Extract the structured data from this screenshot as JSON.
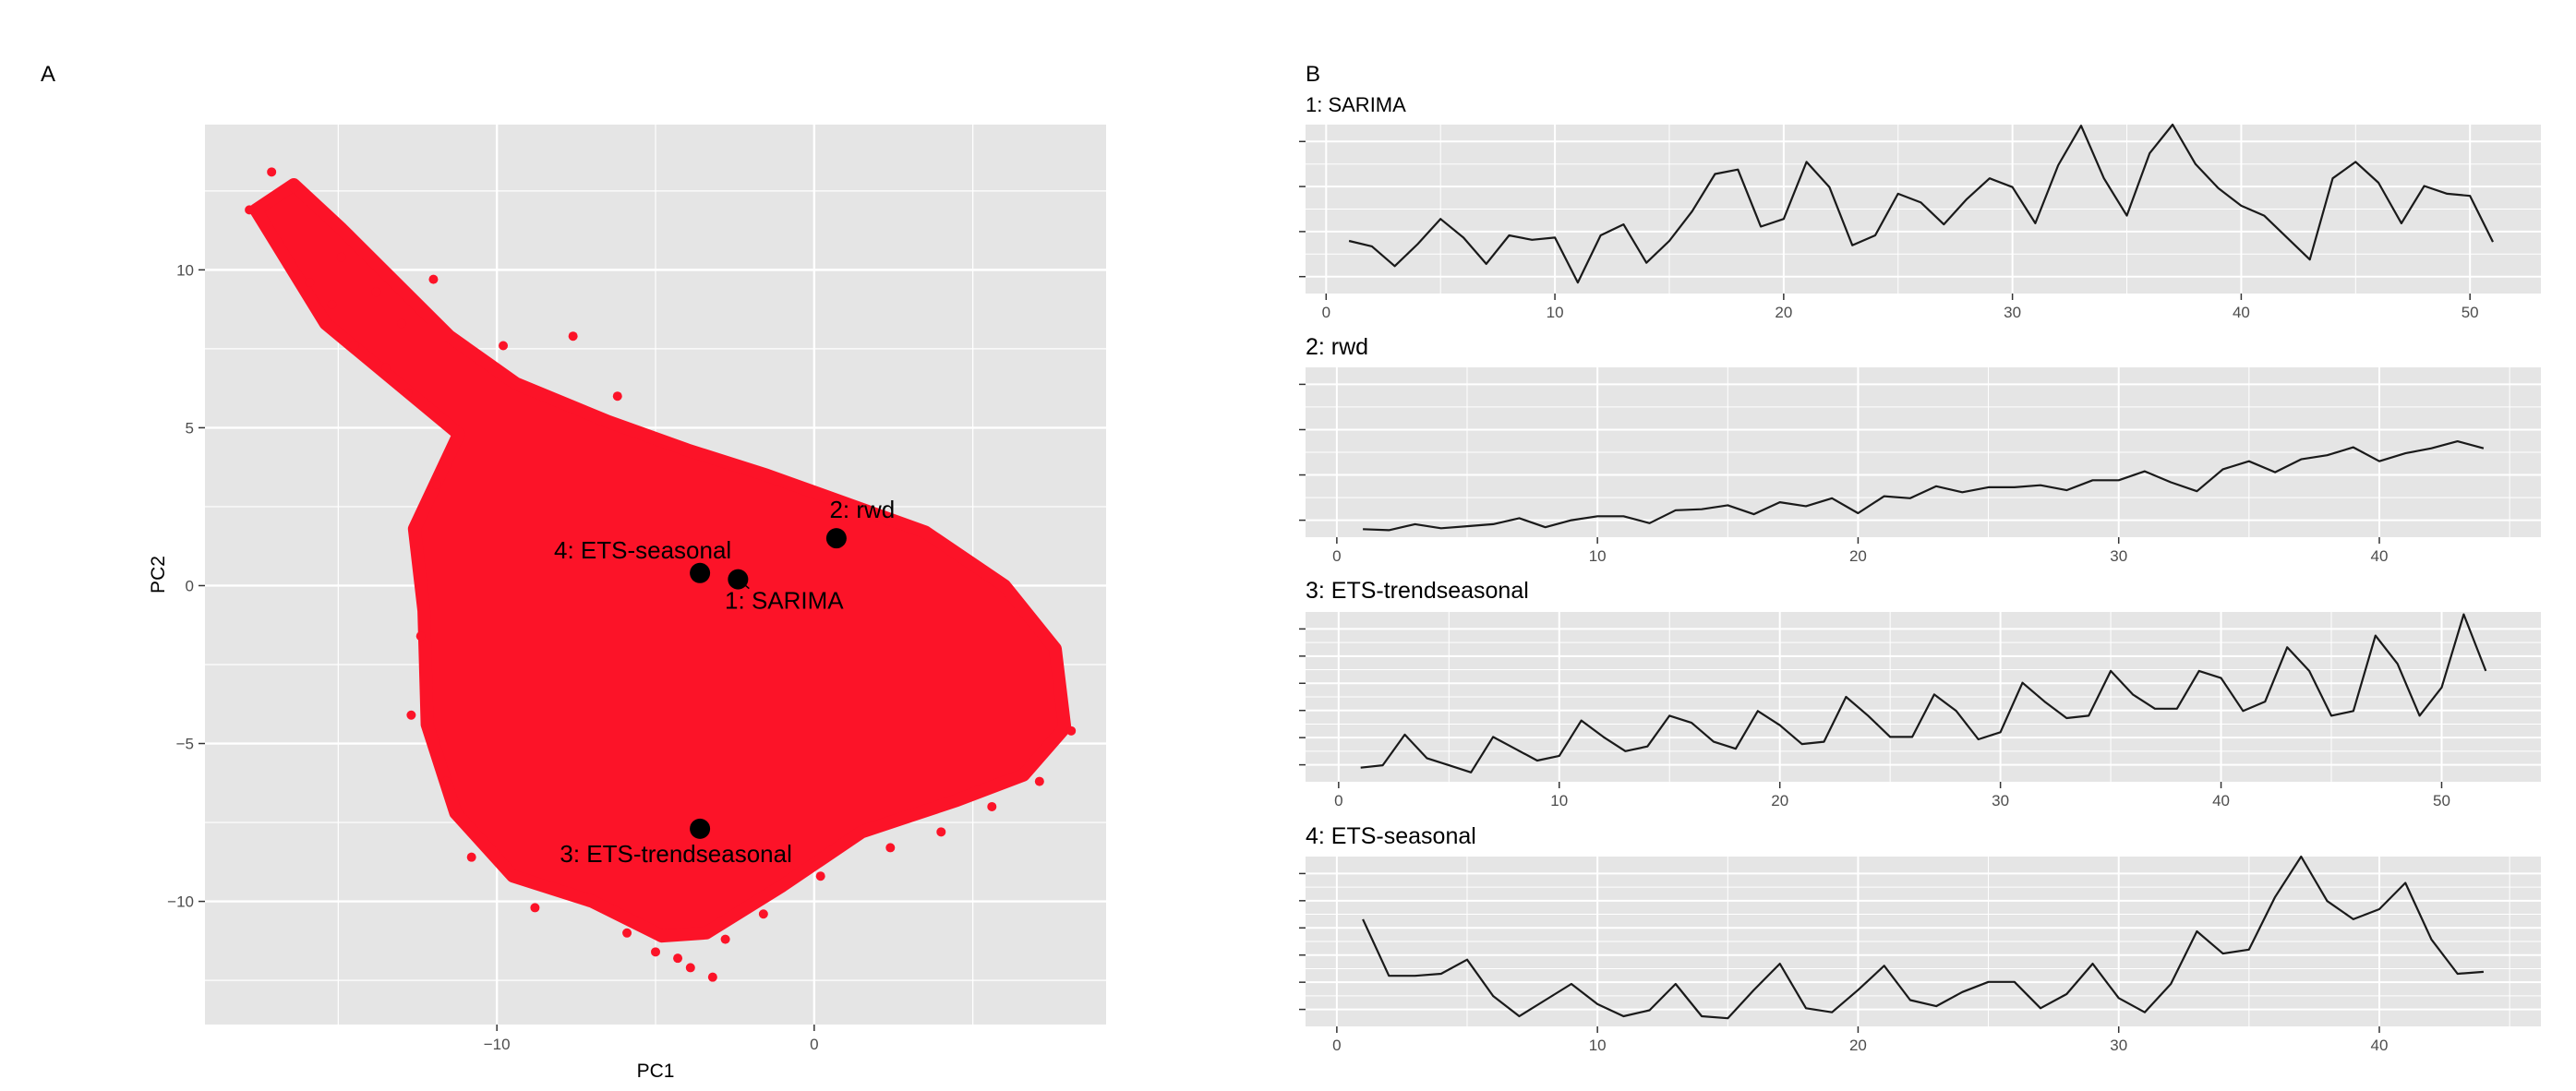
{
  "panels": {
    "a_letter": "A",
    "b_letter": "B"
  },
  "colors": {
    "panel_bg": "#e5e5e5",
    "grid": "#ffffff",
    "cloud": "#fc1328",
    "line": "#1a1a1a",
    "highlight": "#000000"
  },
  "chart_data": [
    {
      "type": "scatter",
      "panel": "A",
      "title": "",
      "xlabel": "PC1",
      "ylabel": "PC2",
      "xlim": [
        -19.2,
        9.2
      ],
      "ylim": [
        -13.9,
        14.6
      ],
      "x_ticks": [
        -10,
        0
      ],
      "y_ticks": [
        10,
        5,
        0,
        -5,
        -10
      ],
      "grid": true,
      "point_cloud_outline": [
        [
          -17.6,
          11.9
        ],
        [
          -16.4,
          12.7
        ],
        [
          -14.9,
          11.3
        ],
        [
          -11.5,
          7.9
        ],
        [
          -9.4,
          6.4
        ],
        [
          -6.5,
          5.2
        ],
        [
          -4.0,
          4.3
        ],
        [
          -1.5,
          3.5
        ],
        [
          1.0,
          2.6
        ],
        [
          3.5,
          1.7
        ],
        [
          6.0,
          0.0
        ],
        [
          7.6,
          -2.0
        ],
        [
          7.9,
          -4.5
        ],
        [
          6.6,
          -6.0
        ],
        [
          4.5,
          -6.8
        ],
        [
          1.5,
          -7.8
        ],
        [
          -1.0,
          -9.5
        ],
        [
          -3.4,
          -11.0
        ],
        [
          -4.8,
          -11.1
        ],
        [
          -7.0,
          -10.0
        ],
        [
          -9.5,
          -9.2
        ],
        [
          -11.3,
          -7.2
        ],
        [
          -12.2,
          -4.4
        ],
        [
          -12.3,
          -0.8
        ],
        [
          -12.6,
          1.8
        ],
        [
          -11.2,
          4.8
        ],
        [
          -15.4,
          8.3
        ]
      ],
      "outliers": [
        [
          -17.8,
          11.9
        ],
        [
          -17.1,
          13.1
        ],
        [
          -16.4,
          12.6
        ],
        [
          -15.9,
          9.6
        ],
        [
          -15.2,
          8.9
        ],
        [
          -14.9,
          10.4
        ],
        [
          -14.5,
          7.6
        ],
        [
          -13.8,
          9.3
        ],
        [
          -13.5,
          6.9
        ],
        [
          -13.0,
          8.3
        ],
        [
          -12.8,
          6.1
        ],
        [
          -12.0,
          9.7
        ],
        [
          -12.7,
          -4.1
        ],
        [
          -12.4,
          -1.6
        ],
        [
          -11.9,
          3.2
        ],
        [
          -11.6,
          -6.2
        ],
        [
          -10.8,
          -8.6
        ],
        [
          -9.8,
          7.6
        ],
        [
          -8.8,
          -10.2
        ],
        [
          -7.6,
          7.9
        ],
        [
          -6.2,
          6.0
        ],
        [
          -5.9,
          -11.0
        ],
        [
          -5.0,
          -11.6
        ],
        [
          -4.3,
          -11.8
        ],
        [
          -3.9,
          -12.1
        ],
        [
          -3.2,
          -12.4
        ],
        [
          -2.8,
          -11.2
        ],
        [
          -1.6,
          -10.4
        ],
        [
          0.2,
          -9.2
        ],
        [
          2.4,
          -8.3
        ],
        [
          4.0,
          -7.8
        ],
        [
          5.6,
          -7.0
        ],
        [
          7.1,
          -6.2
        ],
        [
          8.1,
          -4.6
        ]
      ],
      "highlighted": [
        {
          "label": "1: SARIMA",
          "x": -2.4,
          "y": 0.2
        },
        {
          "label": "2: rwd",
          "x": 0.7,
          "y": 1.5
        },
        {
          "label": "3: ETS-trendseasonal",
          "x": -3.6,
          "y": -7.7
        },
        {
          "label": "4: ETS-seasonal",
          "x": -3.6,
          "y": 0.4
        }
      ]
    },
    {
      "type": "line",
      "panel": "B",
      "title": "1: SARIMA",
      "xlabel": "",
      "ylabel": "",
      "xlim": [
        -0.9,
        53.1
      ],
      "ylim": [
        -1.0,
        14.4
      ],
      "x_ticks": [
        0,
        10,
        20,
        30,
        40,
        50
      ],
      "n_y_ticks": 4,
      "grid": true,
      "x": [
        1,
        2,
        3,
        4,
        5,
        6,
        7,
        8,
        9,
        10,
        11,
        12,
        13,
        14,
        15,
        16,
        17,
        18,
        19,
        20,
        21,
        22,
        23,
        24,
        25,
        26,
        27,
        28,
        29,
        30,
        31,
        32,
        33,
        34,
        35,
        36,
        37,
        38,
        39,
        40,
        41,
        42,
        43,
        44,
        45,
        46,
        47,
        48,
        49,
        50,
        51
      ],
      "y": [
        3.8,
        3.3,
        1.5,
        3.5,
        5.8,
        4.1,
        1.7,
        4.3,
        3.9,
        4.1,
        0.0,
        4.3,
        5.3,
        1.8,
        3.8,
        6.5,
        9.9,
        10.3,
        5.1,
        5.8,
        11.0,
        8.7,
        3.4,
        4.3,
        8.1,
        7.3,
        5.3,
        7.6,
        9.5,
        8.7,
        5.4,
        10.7,
        14.3,
        9.5,
        6.1,
        11.8,
        14.4,
        10.8,
        8.6,
        7.0,
        6.1,
        4.1,
        2.1,
        9.5,
        11.0,
        9.1,
        5.4,
        8.8,
        8.1,
        7.9,
        3.7
      ]
    },
    {
      "type": "line",
      "panel": "B",
      "title": "2: rwd",
      "xlabel": "",
      "ylabel": "",
      "xlim": [
        -1.2,
        46.2
      ],
      "ylim": [
        -0.6,
        16.4
      ],
      "x_ticks": [
        0,
        10,
        20,
        30,
        40
      ],
      "n_y_ticks": 4,
      "grid": true,
      "x": [
        1,
        2,
        3,
        4,
        5,
        6,
        7,
        8,
        9,
        10,
        11,
        12,
        13,
        14,
        15,
        16,
        17,
        18,
        19,
        20,
        21,
        22,
        23,
        24,
        25,
        26,
        27,
        28,
        29,
        30,
        31,
        32,
        33,
        34,
        35,
        36,
        37,
        38,
        39,
        40,
        41,
        42,
        43,
        44
      ],
      "y": [
        0.2,
        0.1,
        0.7,
        0.3,
        0.5,
        0.7,
        1.3,
        0.4,
        1.1,
        1.5,
        1.5,
        0.8,
        2.1,
        2.2,
        2.6,
        1.7,
        2.9,
        2.5,
        3.3,
        1.8,
        3.5,
        3.3,
        4.5,
        3.9,
        4.4,
        4.4,
        4.6,
        4.1,
        5.1,
        5.1,
        6.0,
        4.9,
        4.0,
        6.2,
        7.0,
        5.9,
        7.2,
        7.6,
        8.4,
        7.0,
        7.8,
        8.3,
        9.0,
        8.3
      ]
    },
    {
      "type": "line",
      "panel": "B",
      "title": "3: ETS-trendseasonal",
      "xlabel": "",
      "ylabel": "",
      "xlim": [
        -1.5,
        54.5
      ],
      "ylim": [
        -0.1,
        7.1
      ],
      "x_ticks": [
        0,
        10,
        20,
        30,
        40,
        50
      ],
      "n_y_ticks": 6,
      "grid": true,
      "x": [
        1,
        2,
        3,
        4,
        5,
        6,
        7,
        8,
        9,
        10,
        11,
        12,
        13,
        14,
        15,
        16,
        17,
        18,
        19,
        20,
        21,
        22,
        23,
        24,
        25,
        26,
        27,
        28,
        29,
        30,
        31,
        32,
        33,
        34,
        35,
        36,
        37,
        38,
        39,
        40,
        41,
        42,
        43,
        44,
        45,
        46,
        47,
        48,
        49,
        50,
        51,
        52
      ],
      "y": [
        0.5,
        0.6,
        1.9,
        0.9,
        0.6,
        0.3,
        1.8,
        1.3,
        0.8,
        1.0,
        2.5,
        1.8,
        1.2,
        1.4,
        2.7,
        2.4,
        1.6,
        1.3,
        2.9,
        2.3,
        1.5,
        1.6,
        3.5,
        2.7,
        1.8,
        1.8,
        3.6,
        2.9,
        1.7,
        2.0,
        4.1,
        3.3,
        2.6,
        2.7,
        4.6,
        3.6,
        3.0,
        3.0,
        4.6,
        4.3,
        2.9,
        3.3,
        5.6,
        4.6,
        2.7,
        2.9,
        6.1,
        4.9,
        2.7,
        3.9,
        7.0,
        4.6
      ]
    },
    {
      "type": "line",
      "panel": "B",
      "title": "4: ETS-seasonal",
      "xlabel": "",
      "ylabel": "",
      "xlim": [
        -1.2,
        46.2
      ],
      "ylim": [
        -0.4,
        8.0
      ],
      "x_ticks": [
        0,
        10,
        20,
        30,
        40
      ],
      "n_y_ticks": 6,
      "grid": true,
      "x": [
        1,
        2,
        3,
        4,
        5,
        6,
        7,
        8,
        9,
        10,
        11,
        12,
        13,
        14,
        15,
        16,
        17,
        18,
        19,
        20,
        21,
        22,
        23,
        24,
        25,
        26,
        27,
        28,
        29,
        30,
        31,
        32,
        33,
        34,
        35,
        36,
        37,
        38,
        39,
        40,
        41,
        42,
        43,
        44
      ],
      "y": [
        4.9,
        2.1,
        2.1,
        2.2,
        2.9,
        1.1,
        0.1,
        0.9,
        1.7,
        0.7,
        0.1,
        0.4,
        1.7,
        0.1,
        0.0,
        1.4,
        2.7,
        0.5,
        0.3,
        1.4,
        2.6,
        0.9,
        0.6,
        1.3,
        1.8,
        1.8,
        0.5,
        1.2,
        2.7,
        1.0,
        0.3,
        1.7,
        4.3,
        3.2,
        3.4,
        6.0,
        8.0,
        5.8,
        4.9,
        5.4,
        6.7,
        3.9,
        2.2,
        2.3
      ]
    }
  ]
}
